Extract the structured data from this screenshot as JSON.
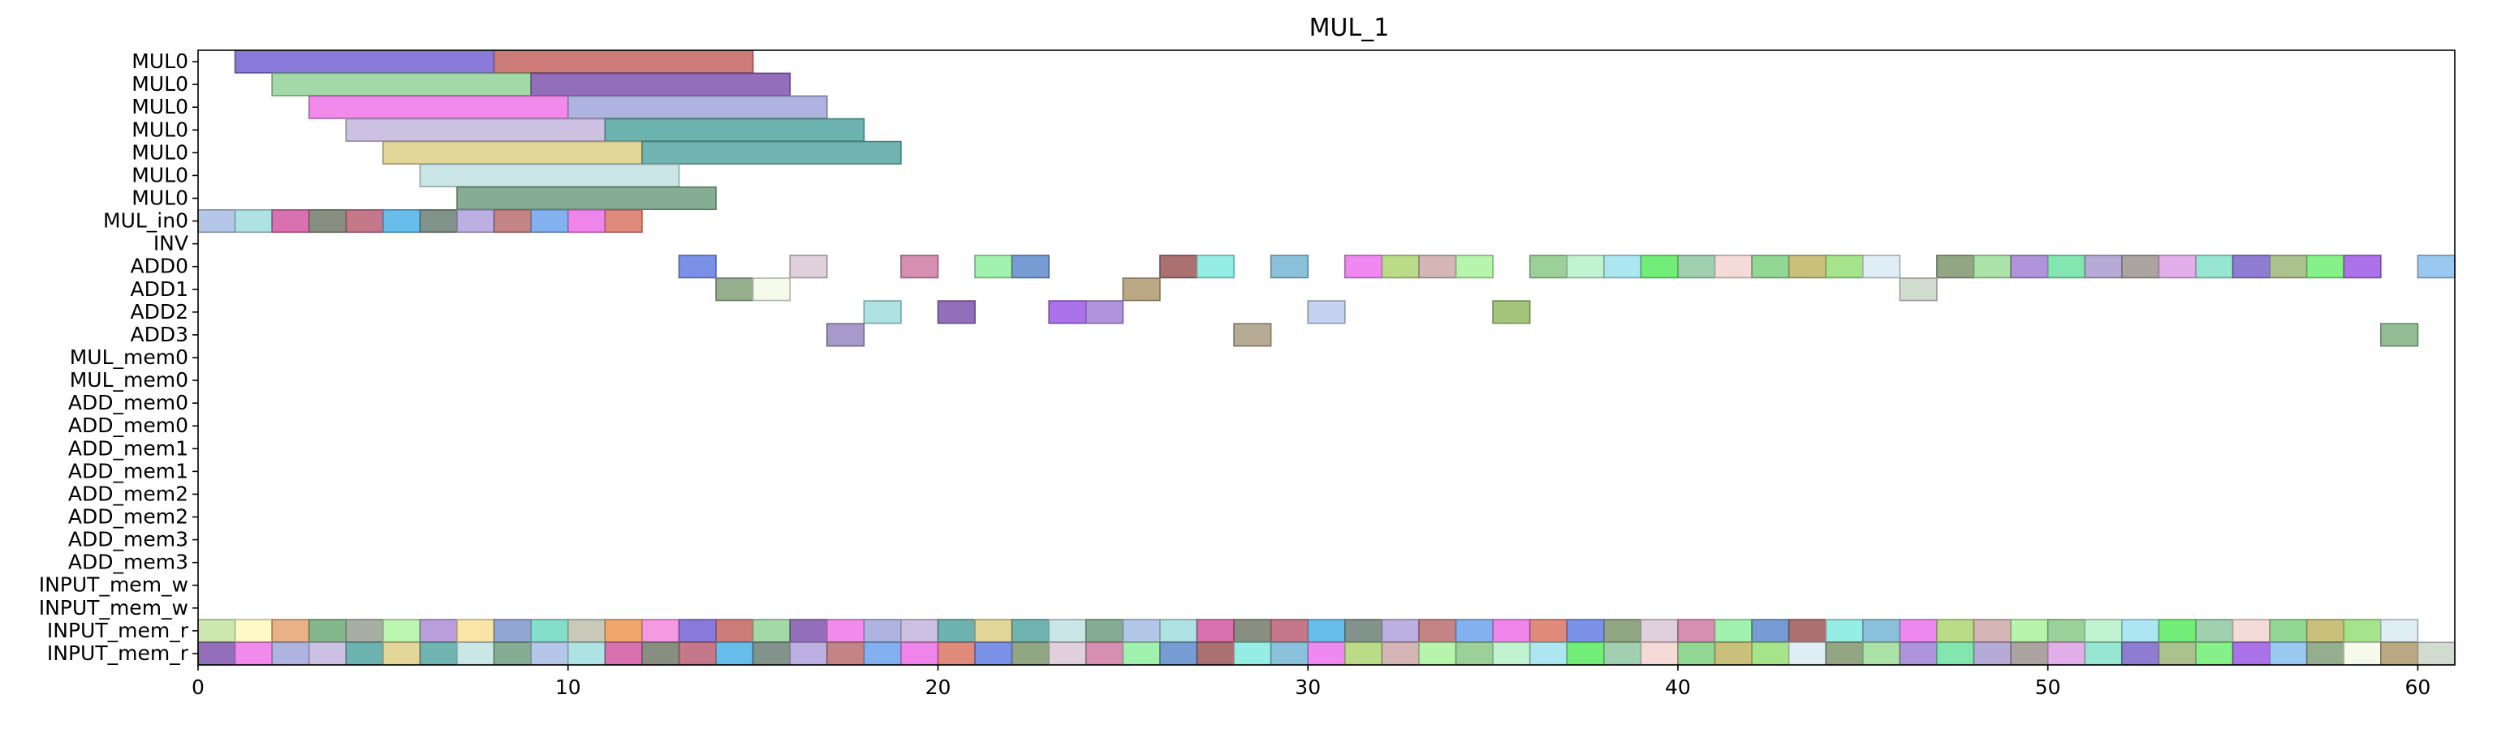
{
  "chart_data": {
    "type": "gantt",
    "title": "MUL_1",
    "xlabel": "",
    "ylabel": "",
    "xlim": [
      0,
      61
    ],
    "x_ticks": [
      0,
      10,
      20,
      30,
      40,
      50,
      60
    ],
    "grid": false,
    "legend": "none",
    "rows": [
      "MUL0",
      "MUL0",
      "MUL0",
      "MUL0",
      "MUL0",
      "MUL0",
      "MUL0",
      "MUL_in0",
      "INV",
      "ADD0",
      "ADD1",
      "ADD2",
      "ADD3",
      "MUL_mem0",
      "MUL_mem0",
      "ADD_mem0",
      "ADD_mem0",
      "ADD_mem1",
      "ADD_mem1",
      "ADD_mem2",
      "ADD_mem2",
      "ADD_mem3",
      "ADD_mem3",
      "INPUT_mem_w",
      "INPUT_mem_w",
      "INPUT_mem_r",
      "INPUT_mem_r"
    ],
    "palette": [
      "#7f6fd6",
      "#c9706c",
      "#9bd6a2",
      "#8a62b5",
      "#f080e8",
      "#a7acdc",
      "#c8bce0",
      "#5fada8",
      "#dfd290",
      "#63aeaa",
      "#c6e4e4",
      "#7aa68a",
      "#aec2e6",
      "#a8e0e0",
      "#d664a8",
      "#7e8576",
      "#bf6d80",
      "#5ab8e8",
      "#778a82",
      "#b6a8e0",
      "#bf7a7c",
      "#78aaee",
      "#ee7ae8",
      "#dd8070",
      "#7088e6",
      "#88a07a",
      "#dcccd8",
      "#d384aa",
      "#99f0a8",
      "#6b94cf",
      "#a46464",
      "#8cece2",
      "#82bcd8",
      "#ef7ef0",
      "#b4d87e",
      "#d0b0b0",
      "#b0f4a4",
      "#94cc90",
      "#bcf2cc",
      "#a4e4f0",
      "#66ec6c",
      "#98cca8",
      "#f4d8d4",
      "#8ad48c",
      "#c4bc70",
      "#9ee282",
      "#dcecf4",
      "#8a9e78",
      "#a4e0a0",
      "#a88ad8",
      "#78e4a8",
      "#b0a4d4",
      "#a49c98",
      "#e0a8e8",
      "#8ee4ce",
      "#8672d0",
      "#a4bc84",
      "#7cf07e",
      "#a466e8",
      "#90c4f0",
      "#8ca884",
      "#f4fae8",
      "#b4a27a",
      "#ced8cc",
      "#a090c4",
      "#b0a48c",
      "#70a8f0",
      "#c0cef0",
      "#9cc070",
      "#8ab88c",
      "#c8e6a8",
      "#fef8c0",
      "#e6aa7c",
      "#78b080",
      "#a0a89c",
      "#b6f4a8",
      "#b496d8",
      "#f8e4a0",
      "#8aa0d0",
      "#78dcc4",
      "#c4c4b4",
      "#f0a060",
      "#f490e0"
    ],
    "bars": [
      {
        "row": 0,
        "start": 1,
        "end": 8,
        "c": 0
      },
      {
        "row": 0,
        "start": 8,
        "end": 15,
        "c": 1
      },
      {
        "row": 1,
        "start": 2,
        "end": 9,
        "c": 2
      },
      {
        "row": 1,
        "start": 9,
        "end": 16,
        "c": 3
      },
      {
        "row": 2,
        "start": 3,
        "end": 10,
        "c": 4
      },
      {
        "row": 2,
        "start": 10,
        "end": 17,
        "c": 5
      },
      {
        "row": 3,
        "start": 4,
        "end": 11,
        "c": 6
      },
      {
        "row": 3,
        "start": 11,
        "end": 18,
        "c": 7
      },
      {
        "row": 4,
        "start": 5,
        "end": 12,
        "c": 8
      },
      {
        "row": 4,
        "start": 12,
        "end": 19,
        "c": 9
      },
      {
        "row": 5,
        "start": 6,
        "end": 13,
        "c": 10
      },
      {
        "row": 6,
        "start": 7,
        "end": 14,
        "c": 11
      },
      {
        "row": 7,
        "start": 0,
        "end": 1,
        "c": 12
      },
      {
        "row": 7,
        "start": 1,
        "end": 2,
        "c": 13
      },
      {
        "row": 7,
        "start": 2,
        "end": 3,
        "c": 14
      },
      {
        "row": 7,
        "start": 3,
        "end": 4,
        "c": 15
      },
      {
        "row": 7,
        "start": 4,
        "end": 5,
        "c": 16
      },
      {
        "row": 7,
        "start": 5,
        "end": 6,
        "c": 17
      },
      {
        "row": 7,
        "start": 6,
        "end": 7,
        "c": 18
      },
      {
        "row": 7,
        "start": 7,
        "end": 8,
        "c": 19
      },
      {
        "row": 7,
        "start": 8,
        "end": 9,
        "c": 20
      },
      {
        "row": 7,
        "start": 9,
        "end": 10,
        "c": 21
      },
      {
        "row": 7,
        "start": 10,
        "end": 11,
        "c": 22
      },
      {
        "row": 7,
        "start": 11,
        "end": 12,
        "c": 23
      },
      {
        "row": 9,
        "start": 13,
        "end": 14,
        "c": 24
      },
      {
        "row": 9,
        "start": 16,
        "end": 17,
        "c": 26
      },
      {
        "row": 9,
        "start": 19,
        "end": 20,
        "c": 27
      },
      {
        "row": 9,
        "start": 21,
        "end": 22,
        "c": 28
      },
      {
        "row": 9,
        "start": 22,
        "end": 23,
        "c": 29
      },
      {
        "row": 9,
        "start": 26,
        "end": 27,
        "c": 30
      },
      {
        "row": 9,
        "start": 27,
        "end": 28,
        "c": 31
      },
      {
        "row": 9,
        "start": 29,
        "end": 30,
        "c": 32
      },
      {
        "row": 9,
        "start": 31,
        "end": 32,
        "c": 33
      },
      {
        "row": 9,
        "start": 32,
        "end": 33,
        "c": 34
      },
      {
        "row": 9,
        "start": 33,
        "end": 34,
        "c": 35
      },
      {
        "row": 9,
        "start": 34,
        "end": 35,
        "c": 36
      },
      {
        "row": 9,
        "start": 36,
        "end": 37,
        "c": 37
      },
      {
        "row": 9,
        "start": 37,
        "end": 38,
        "c": 38
      },
      {
        "row": 9,
        "start": 38,
        "end": 39,
        "c": 39
      },
      {
        "row": 9,
        "start": 39,
        "end": 40,
        "c": 40
      },
      {
        "row": 9,
        "start": 40,
        "end": 41,
        "c": 41
      },
      {
        "row": 9,
        "start": 41,
        "end": 42,
        "c": 42
      },
      {
        "row": 9,
        "start": 42,
        "end": 43,
        "c": 43
      },
      {
        "row": 9,
        "start": 43,
        "end": 44,
        "c": 44
      },
      {
        "row": 9,
        "start": 44,
        "end": 45,
        "c": 45
      },
      {
        "row": 9,
        "start": 45,
        "end": 46,
        "c": 46
      },
      {
        "row": 9,
        "start": 47,
        "end": 48,
        "c": 47
      },
      {
        "row": 9,
        "start": 48,
        "end": 49,
        "c": 48
      },
      {
        "row": 9,
        "start": 49,
        "end": 50,
        "c": 49
      },
      {
        "row": 9,
        "start": 50,
        "end": 51,
        "c": 50
      },
      {
        "row": 9,
        "start": 51,
        "end": 52,
        "c": 51
      },
      {
        "row": 9,
        "start": 52,
        "end": 53,
        "c": 52
      },
      {
        "row": 9,
        "start": 53,
        "end": 54,
        "c": 53
      },
      {
        "row": 9,
        "start": 54,
        "end": 55,
        "c": 54
      },
      {
        "row": 9,
        "start": 55,
        "end": 56,
        "c": 55
      },
      {
        "row": 9,
        "start": 56,
        "end": 57,
        "c": 56
      },
      {
        "row": 9,
        "start": 57,
        "end": 58,
        "c": 57
      },
      {
        "row": 9,
        "start": 58,
        "end": 59,
        "c": 58
      },
      {
        "row": 9,
        "start": 60,
        "end": 61,
        "c": 59
      },
      {
        "row": 10,
        "start": 14,
        "end": 15,
        "c": 60
      },
      {
        "row": 10,
        "start": 15,
        "end": 16,
        "c": 61
      },
      {
        "row": 10,
        "start": 25,
        "end": 26,
        "c": 62
      },
      {
        "row": 10,
        "start": 46,
        "end": 47,
        "c": 63
      },
      {
        "row": 11,
        "start": 18,
        "end": 19,
        "c": 13
      },
      {
        "row": 11,
        "start": 20,
        "end": 21,
        "c": 3
      },
      {
        "row": 11,
        "start": 23,
        "end": 24,
        "c": 58
      },
      {
        "row": 11,
        "start": 24,
        "end": 25,
        "c": 49
      },
      {
        "row": 11,
        "start": 30,
        "end": 31,
        "c": 67
      },
      {
        "row": 11,
        "start": 35,
        "end": 36,
        "c": 68
      },
      {
        "row": 12,
        "start": 17,
        "end": 18,
        "c": 64
      },
      {
        "row": 12,
        "start": 28,
        "end": 29,
        "c": 65
      },
      {
        "row": 12,
        "start": 59,
        "end": 60,
        "c": 69
      }
    ],
    "filled_rows": [
      {
        "row": 25,
        "start": 0,
        "end": 60,
        "offset": 70
      },
      {
        "row": 26,
        "start": 0,
        "end": 61,
        "offset": 3
      }
    ]
  }
}
